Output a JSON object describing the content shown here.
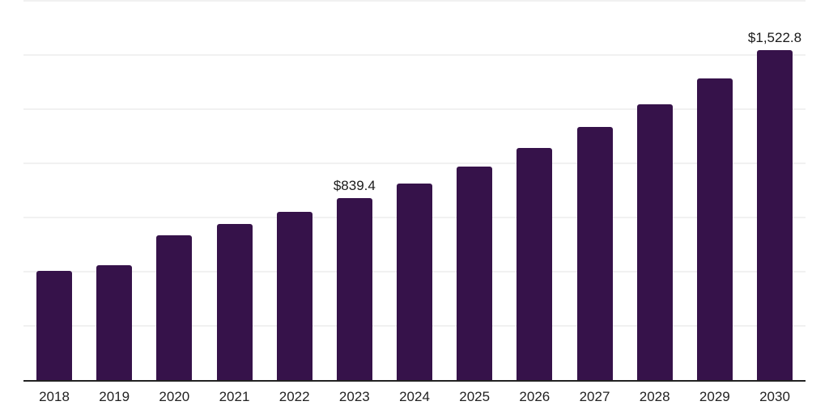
{
  "chart_data": {
    "type": "bar",
    "title": "",
    "xlabel": "",
    "ylabel": "",
    "categories": [
      "2018",
      "2019",
      "2020",
      "2021",
      "2022",
      "2023",
      "2024",
      "2025",
      "2026",
      "2027",
      "2028",
      "2029",
      "2030"
    ],
    "values": [
      503.7,
      531.0,
      668.0,
      721.0,
      776.0,
      839.4,
      908.0,
      985.0,
      1072.0,
      1169.0,
      1272.0,
      1391.0,
      1522.8
    ],
    "data_labels": {
      "2023": "$839.4",
      "2030": "$1,522.8"
    },
    "ylim": [
      0,
      1750
    ],
    "gridline_interval": 250,
    "grid": "horizontal",
    "legend_position": "none",
    "y_axis_tick_labels_visible": false,
    "colors": {
      "bar": "#36124A",
      "axis_line": "#222222",
      "gridline": "#f1f1f1",
      "value_label_text": "#1a1a1a",
      "x_tick_label_text": "#222222",
      "background": "#ffffff"
    }
  }
}
